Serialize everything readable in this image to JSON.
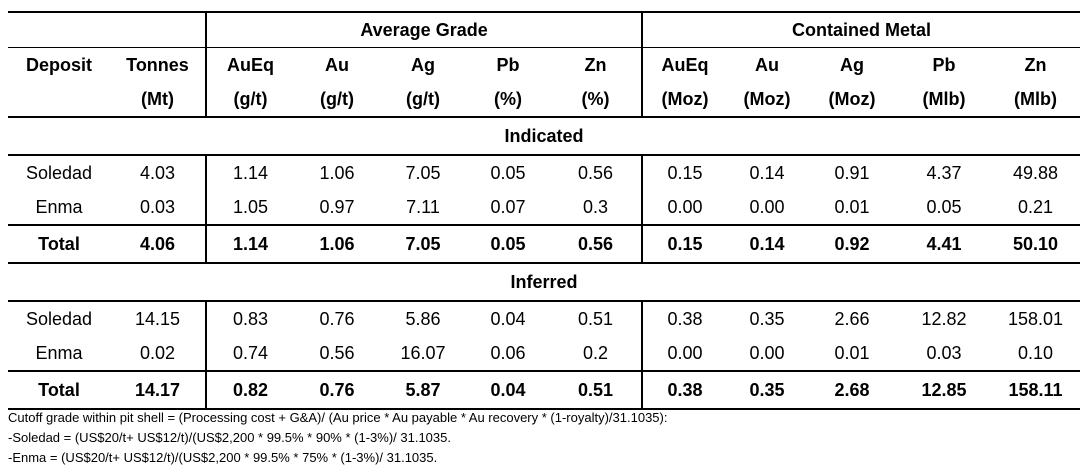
{
  "groups": {
    "grade": "Average Grade",
    "metal": "Contained Metal"
  },
  "header_top": [
    "Deposit",
    "Tonnes",
    "AuEq",
    "Au",
    "Ag",
    "Pb",
    "Zn",
    "AuEq",
    "Au",
    "Ag",
    "Pb",
    "Zn"
  ],
  "header_units": [
    "",
    "(Mt)",
    "(g/t)",
    "(g/t)",
    "(g/t)",
    "(%)",
    "(%)",
    "(Moz)",
    "(Moz)",
    "(Moz)",
    "(Mlb)",
    "(Mlb)"
  ],
  "sections": [
    {
      "title": "Indicated",
      "rows": [
        [
          "Soledad",
          "4.03",
          "1.14",
          "1.06",
          "7.05",
          "0.05",
          "0.56",
          "0.15",
          "0.14",
          "0.91",
          "4.37",
          "49.88"
        ],
        [
          "Enma",
          "0.03",
          "1.05",
          "0.97",
          "7.11",
          "0.07",
          "0.3",
          "0.00",
          "0.00",
          "0.01",
          "0.05",
          "0.21"
        ]
      ],
      "total": [
        "Total",
        "4.06",
        "1.14",
        "1.06",
        "7.05",
        "0.05",
        "0.56",
        "0.15",
        "0.14",
        "0.92",
        "4.41",
        "50.10"
      ]
    },
    {
      "title": "Inferred",
      "rows": [
        [
          "Soledad",
          "14.15",
          "0.83",
          "0.76",
          "5.86",
          "0.04",
          "0.51",
          "0.38",
          "0.35",
          "2.66",
          "12.82",
          "158.01"
        ],
        [
          "Enma",
          "0.02",
          "0.74",
          "0.56",
          "16.07",
          "0.06",
          "0.2",
          "0.00",
          "0.00",
          "0.01",
          "0.03",
          "0.10"
        ]
      ],
      "total": [
        "Total",
        "14.17",
        "0.82",
        "0.76",
        "5.87",
        "0.04",
        "0.51",
        "0.38",
        "0.35",
        "2.68",
        "12.85",
        "158.11"
      ]
    }
  ],
  "notes": [
    "Cutoff grade within pit shell = (Processing cost + G&A)/ (Au price * Au payable * Au recovery * (1-royalty)/31.1035):",
    "-Soledad = (US$20/t+ US$12/t)/(US$2,200 * 99.5% * 90% * (1-3%)/ 31.1035.",
    "-Enma = (US$20/t+ US$12/t)/(US$2,200 * 99.5% * 75% * (1-3%)/ 31.1035."
  ]
}
